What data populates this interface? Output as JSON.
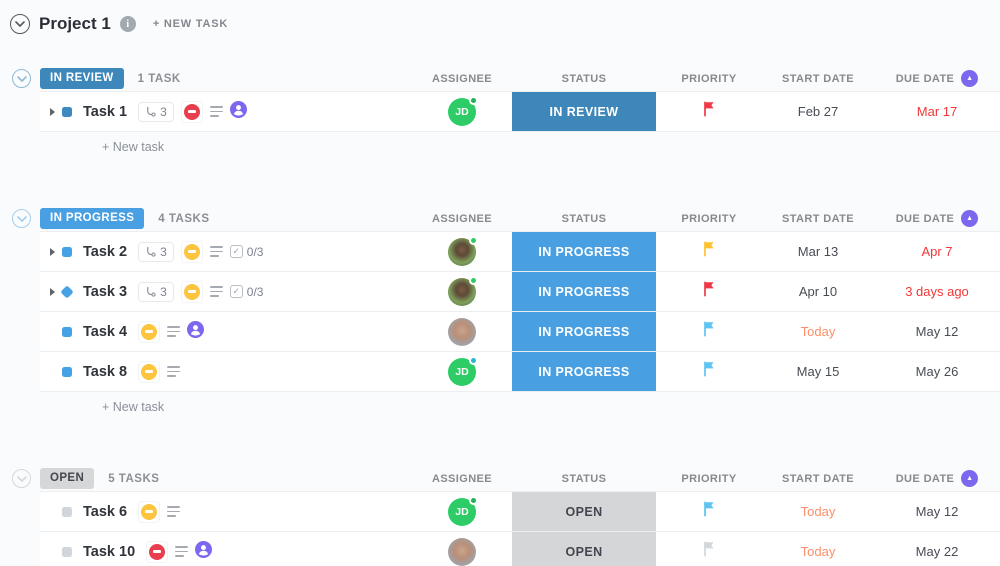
{
  "header": {
    "title": "Project 1",
    "info_icon": "i",
    "new_task_label": "+ NEW TASK"
  },
  "columns": {
    "assignee": "ASSIGNEE",
    "status": "STATUS",
    "priority": "PRIORITY",
    "start_date": "START DATE",
    "due_date": "DUE DATE",
    "due_sort_icon": "▲",
    "due_sort_color": "#7b68ee"
  },
  "groups": [
    {
      "status_label": "IN REVIEW",
      "badge_bg": "#3d87ba",
      "badge_color": "#ffffff",
      "chevron_color": "#8fb9d6",
      "count_label": "1 TASK",
      "new_task_label": "+ New task",
      "tasks": [
        {
          "name": "Task 1",
          "expandable": true,
          "shape": "square",
          "shape_color": "#3e89c0",
          "icons": [
            {
              "type": "subtasks",
              "count": "3"
            },
            {
              "type": "blocked",
              "color": "#e93e4e"
            },
            {
              "type": "description"
            },
            {
              "type": "person",
              "color": "#7b68ee"
            }
          ],
          "assignee": {
            "kind": "initials",
            "text": "JD",
            "bg": "#2ecc66",
            "dot": "#1fb35b"
          },
          "status": {
            "label": "IN REVIEW",
            "bg": "#3d87ba",
            "color": "#ffffff"
          },
          "priority_flag": "#ee3a48",
          "start_date": {
            "text": "Feb 27",
            "color": "#484c54"
          },
          "due_date": {
            "text": "Mar 17",
            "color": "#f33636"
          }
        }
      ]
    },
    {
      "status_label": "IN PROGRESS",
      "badge_bg": "#48a0e2",
      "badge_color": "#ffffff",
      "chevron_color": "#a5cdec",
      "count_label": "4 TASKS",
      "new_task_label": "+ New task",
      "tasks": [
        {
          "name": "Task 2",
          "expandable": true,
          "shape": "square",
          "shape_color": "#46a2e4",
          "icons": [
            {
              "type": "subtasks",
              "count": "3"
            },
            {
              "type": "blocked",
              "color": "#fdc43f"
            },
            {
              "type": "description"
            },
            {
              "type": "checklist",
              "text": "0/3"
            }
          ],
          "assignee": {
            "kind": "photo",
            "variant": "woman",
            "dot": "#2ecc66"
          },
          "status": {
            "label": "IN PROGRESS",
            "bg": "#48a0e2",
            "color": "#ffffff"
          },
          "priority_flag": "#fdc02f",
          "start_date": {
            "text": "Mar 13",
            "color": "#484c54"
          },
          "due_date": {
            "text": "Apr 7",
            "color": "#f33636"
          }
        },
        {
          "name": "Task 3",
          "expandable": true,
          "shape": "diamond",
          "shape_color": "#46a2e4",
          "icons": [
            {
              "type": "subtasks",
              "count": "3"
            },
            {
              "type": "blocked",
              "color": "#fdc43f"
            },
            {
              "type": "description"
            },
            {
              "type": "checklist",
              "text": "0/3"
            }
          ],
          "assignee": {
            "kind": "photo",
            "variant": "woman",
            "dot": "#2ecc66"
          },
          "status": {
            "label": "IN PROGRESS",
            "bg": "#48a0e2",
            "color": "#ffffff"
          },
          "priority_flag": "#ee3a48",
          "start_date": {
            "text": "Apr 10",
            "color": "#484c54"
          },
          "due_date": {
            "text": "3 days ago",
            "color": "#f33636"
          }
        },
        {
          "name": "Task 4",
          "expandable": false,
          "shape": "square",
          "shape_color": "#46a2e4",
          "icons": [
            {
              "type": "blocked",
              "color": "#fdc43f"
            },
            {
              "type": "description"
            },
            {
              "type": "person",
              "color": "#7b68ee"
            }
          ],
          "assignee": {
            "kind": "photo",
            "variant": "man",
            "dot": null
          },
          "status": {
            "label": "IN PROGRESS",
            "bg": "#48a0e2",
            "color": "#ffffff"
          },
          "priority_flag": "#5ec4f0",
          "start_date": {
            "text": "Today",
            "color": "#fd8e67"
          },
          "due_date": {
            "text": "May 12",
            "color": "#484c54"
          }
        },
        {
          "name": "Task 8",
          "expandable": false,
          "shape": "square",
          "shape_color": "#46a2e4",
          "icons": [
            {
              "type": "blocked",
              "color": "#fdc43f"
            },
            {
              "type": "description"
            }
          ],
          "assignee": {
            "kind": "initials",
            "text": "JD",
            "bg": "#2ecc66",
            "dot": "#29b6d8"
          },
          "status": {
            "label": "IN PROGRESS",
            "bg": "#48a0e2",
            "color": "#ffffff"
          },
          "priority_flag": "#5ec4f0",
          "start_date": {
            "text": "May 15",
            "color": "#484c54"
          },
          "due_date": {
            "text": "May 26",
            "color": "#484c54"
          }
        }
      ]
    },
    {
      "status_label": "OPEN",
      "badge_bg": "#d6d7d9",
      "badge_color": "#42464e",
      "chevron_color": "#d5d7d9",
      "count_label": "5 TASKS",
      "new_task_label": null,
      "tasks": [
        {
          "name": "Task 6",
          "expandable": false,
          "shape": "square",
          "shape_color": "#d2d5d9",
          "icons": [
            {
              "type": "blocked",
              "color": "#fdc43f"
            },
            {
              "type": "description"
            }
          ],
          "assignee": {
            "kind": "initials",
            "text": "JD",
            "bg": "#2ecc66",
            "dot": "#1fb35b"
          },
          "status": {
            "label": "OPEN",
            "bg": "#d5d6d8",
            "color": "#42464e"
          },
          "priority_flag": "#5ec4f0",
          "start_date": {
            "text": "Today",
            "color": "#fd8e67"
          },
          "due_date": {
            "text": "May 12",
            "color": "#484c54"
          }
        },
        {
          "name": "Task 10",
          "expandable": false,
          "shape": "square",
          "shape_color": "#d2d5d9",
          "icons": [
            {
              "type": "blocked",
              "color": "#e93e4e"
            },
            {
              "type": "description"
            },
            {
              "type": "person",
              "color": "#7b68ee"
            }
          ],
          "assignee": {
            "kind": "photo",
            "variant": "man",
            "dot": null
          },
          "status": {
            "label": "OPEN",
            "bg": "#d5d6d8",
            "color": "#42464e"
          },
          "priority_flag": "#d4d7da",
          "start_date": {
            "text": "Today",
            "color": "#fd8e67"
          },
          "due_date": {
            "text": "May 22",
            "color": "#484c54"
          }
        }
      ]
    }
  ]
}
